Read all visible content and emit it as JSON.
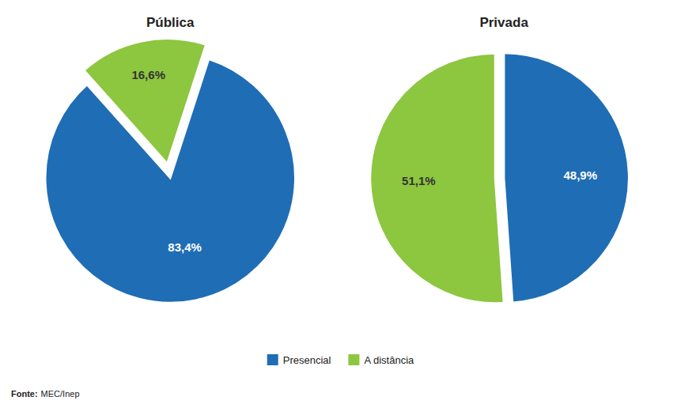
{
  "chart_data": [
    {
      "type": "pie",
      "title": "Pública",
      "categories": [
        "Presencial",
        "A distância"
      ],
      "values": [
        83.4,
        16.6
      ],
      "value_labels": [
        "83,4%",
        "16,6%"
      ],
      "colors": [
        "#1f6db5",
        "#8dc63f"
      ],
      "data_labels": true,
      "legend": "bottom",
      "annotations": [
        "Fonte:",
        "MEC/Inep"
      ]
    },
    {
      "type": "pie",
      "title": "Privada",
      "categories": [
        "Presencial",
        "A distância"
      ],
      "values": [
        48.9,
        51.1
      ],
      "value_labels": [
        "48,9%",
        "51,1%"
      ],
      "colors": [
        "#1f6db5",
        "#8dc63f"
      ],
      "data_labels": true
    }
  ]
}
